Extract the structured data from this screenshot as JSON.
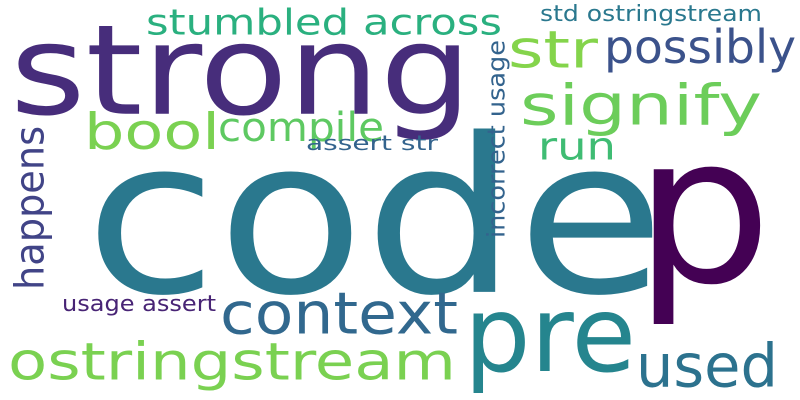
{
  "words": [
    {
      "text": "code",
      "color": "#2a788e"
    },
    {
      "text": "strong",
      "color": "#472d7b"
    },
    {
      "text": "p",
      "color": "#440154"
    },
    {
      "text": "pre",
      "color": "#25858e"
    },
    {
      "text": "ostringstream",
      "color": "#7ad151"
    },
    {
      "text": "used",
      "color": "#2c728e"
    },
    {
      "text": "context",
      "color": "#31688e"
    },
    {
      "text": "signify",
      "color": "#6ccd5a"
    },
    {
      "text": "stumbled across",
      "color": "#2ab07f"
    },
    {
      "text": "str",
      "color": "#84d44b"
    },
    {
      "text": "possibly",
      "color": "#3b528b"
    },
    {
      "text": "bool",
      "color": "#7ad151"
    },
    {
      "text": "compile",
      "color": "#5ec962"
    },
    {
      "text": "run",
      "color": "#3fbc73"
    },
    {
      "text": "happens",
      "color": "#414487"
    },
    {
      "text": "std ostringstream",
      "color": "#2a788e"
    },
    {
      "text": "assert str",
      "color": "#33638d"
    },
    {
      "text": "incorrect usage",
      "color": "#33638d"
    },
    {
      "text": "usage assert",
      "color": "#482475"
    }
  ]
}
